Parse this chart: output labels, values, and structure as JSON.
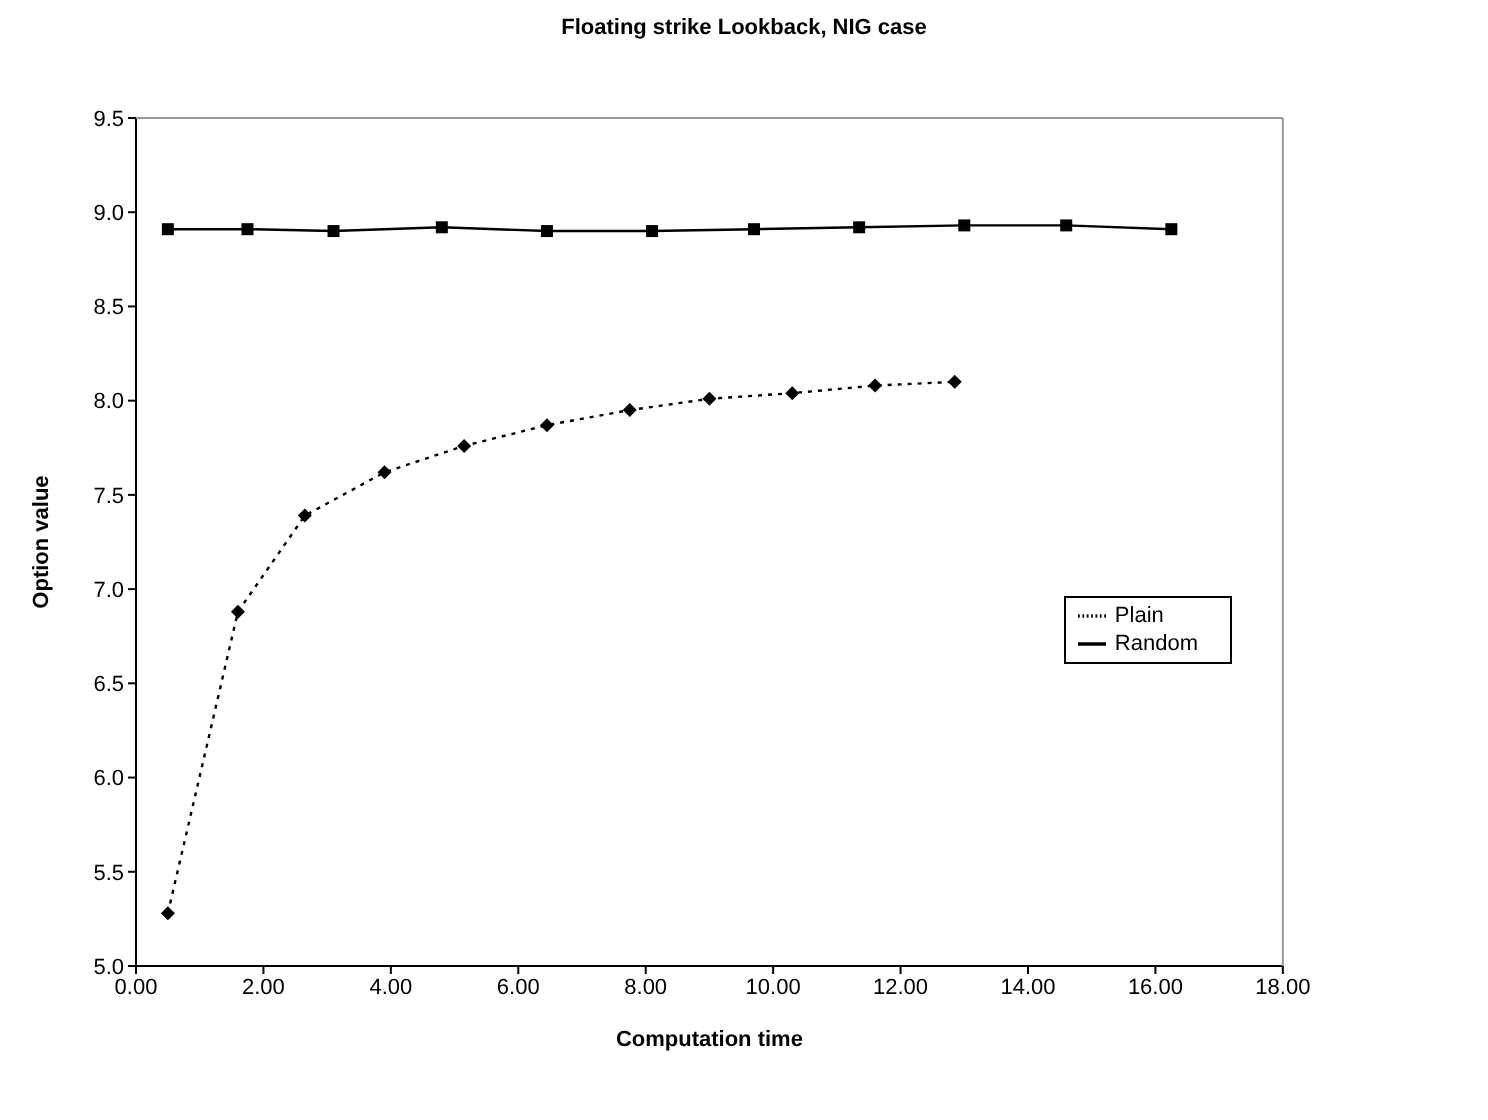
{
  "chart_data": {
    "type": "line",
    "title": "Floating strike Lookback, NIG case",
    "xlabel": "Computation time",
    "ylabel": "Option value",
    "xlim": [
      0,
      18
    ],
    "xticks": [
      {
        "value": 0,
        "label": "0.00"
      },
      {
        "value": 2,
        "label": "2.00"
      },
      {
        "value": 4,
        "label": "4.00"
      },
      {
        "value": 6,
        "label": "6.00"
      },
      {
        "value": 8,
        "label": "8.00"
      },
      {
        "value": 10,
        "label": "10.00"
      },
      {
        "value": 12,
        "label": "12.00"
      },
      {
        "value": 14,
        "label": "14.00"
      },
      {
        "value": 16,
        "label": "16.00"
      },
      {
        "value": 18,
        "label": "18.00"
      }
    ],
    "ylim": [
      5,
      9.5
    ],
    "yticks": [
      {
        "value": 5,
        "label": "5.0"
      },
      {
        "value": 5.5,
        "label": "5.5"
      },
      {
        "value": 6,
        "label": "6.0"
      },
      {
        "value": 6.5,
        "label": "6.5"
      },
      {
        "value": 7,
        "label": "7.0"
      },
      {
        "value": 7.5,
        "label": "7.5"
      },
      {
        "value": 8,
        "label": "8.0"
      },
      {
        "value": 8.5,
        "label": "8.5"
      },
      {
        "value": 9,
        "label": "9.0"
      },
      {
        "value": 9.5,
        "label": "9.5"
      }
    ],
    "grid": false,
    "legend": "right",
    "series": [
      {
        "name": "Plain",
        "color": "#000000",
        "marker": "diamond",
        "line_style": "dotted",
        "x": [
          0.5,
          1.6,
          2.65,
          3.9,
          5.15,
          6.45,
          7.75,
          9.0,
          10.3,
          11.6,
          12.85
        ],
        "values": [
          5.28,
          6.88,
          7.39,
          7.62,
          7.76,
          7.87,
          7.95,
          8.01,
          8.04,
          8.08,
          8.1
        ]
      },
      {
        "name": "Random",
        "color": "#000000",
        "marker": "square",
        "line_style": "solid",
        "x": [
          0.5,
          1.75,
          3.1,
          4.8,
          6.45,
          8.1,
          9.7,
          11.35,
          13.0,
          14.6,
          16.25
        ],
        "values": [
          8.91,
          8.91,
          8.9,
          8.92,
          8.9,
          8.9,
          8.91,
          8.92,
          8.93,
          8.93,
          8.91
        ]
      }
    ]
  }
}
